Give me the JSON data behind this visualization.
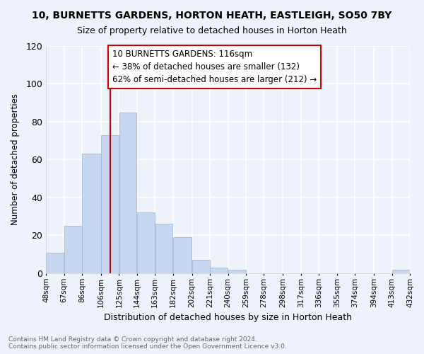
{
  "title": "10, BURNETTS GARDENS, HORTON HEATH, EASTLEIGH, SO50 7BY",
  "subtitle": "Size of property relative to detached houses in Horton Heath",
  "xlabel": "Distribution of detached houses by size in Horton Heath",
  "ylabel": "Number of detached properties",
  "footer_line1": "Contains HM Land Registry data © Crown copyright and database right 2024.",
  "footer_line2": "Contains public sector information licensed under the Open Government Licence v3.0.",
  "annotation_line1": "10 BURNETTS GARDENS: 116sqm",
  "annotation_line2": "← 38% of detached houses are smaller (132)",
  "annotation_line3": "62% of semi-detached houses are larger (212) →",
  "bin_edges": [
    48,
    67,
    86,
    106,
    125,
    144,
    163,
    182,
    202,
    221,
    240,
    259,
    278,
    298,
    317,
    336,
    355,
    374,
    394,
    413,
    432
  ],
  "bin_counts": [
    11,
    25,
    63,
    73,
    85,
    32,
    26,
    19,
    7,
    3,
    2,
    0,
    0,
    0,
    0,
    0,
    0,
    0,
    0,
    2
  ],
  "bar_color": "#c5d8f0",
  "bar_edge_color": "#a0bcd8",
  "vline_color": "#cc0000",
  "vline_x": 116,
  "annotation_box_color": "#cc0000",
  "background_color": "#eef2fb",
  "grid_color": "#ffffff",
  "ylim": [
    0,
    120
  ],
  "yticks": [
    0,
    20,
    40,
    60,
    80,
    100,
    120
  ],
  "xlim": [
    48,
    432
  ]
}
